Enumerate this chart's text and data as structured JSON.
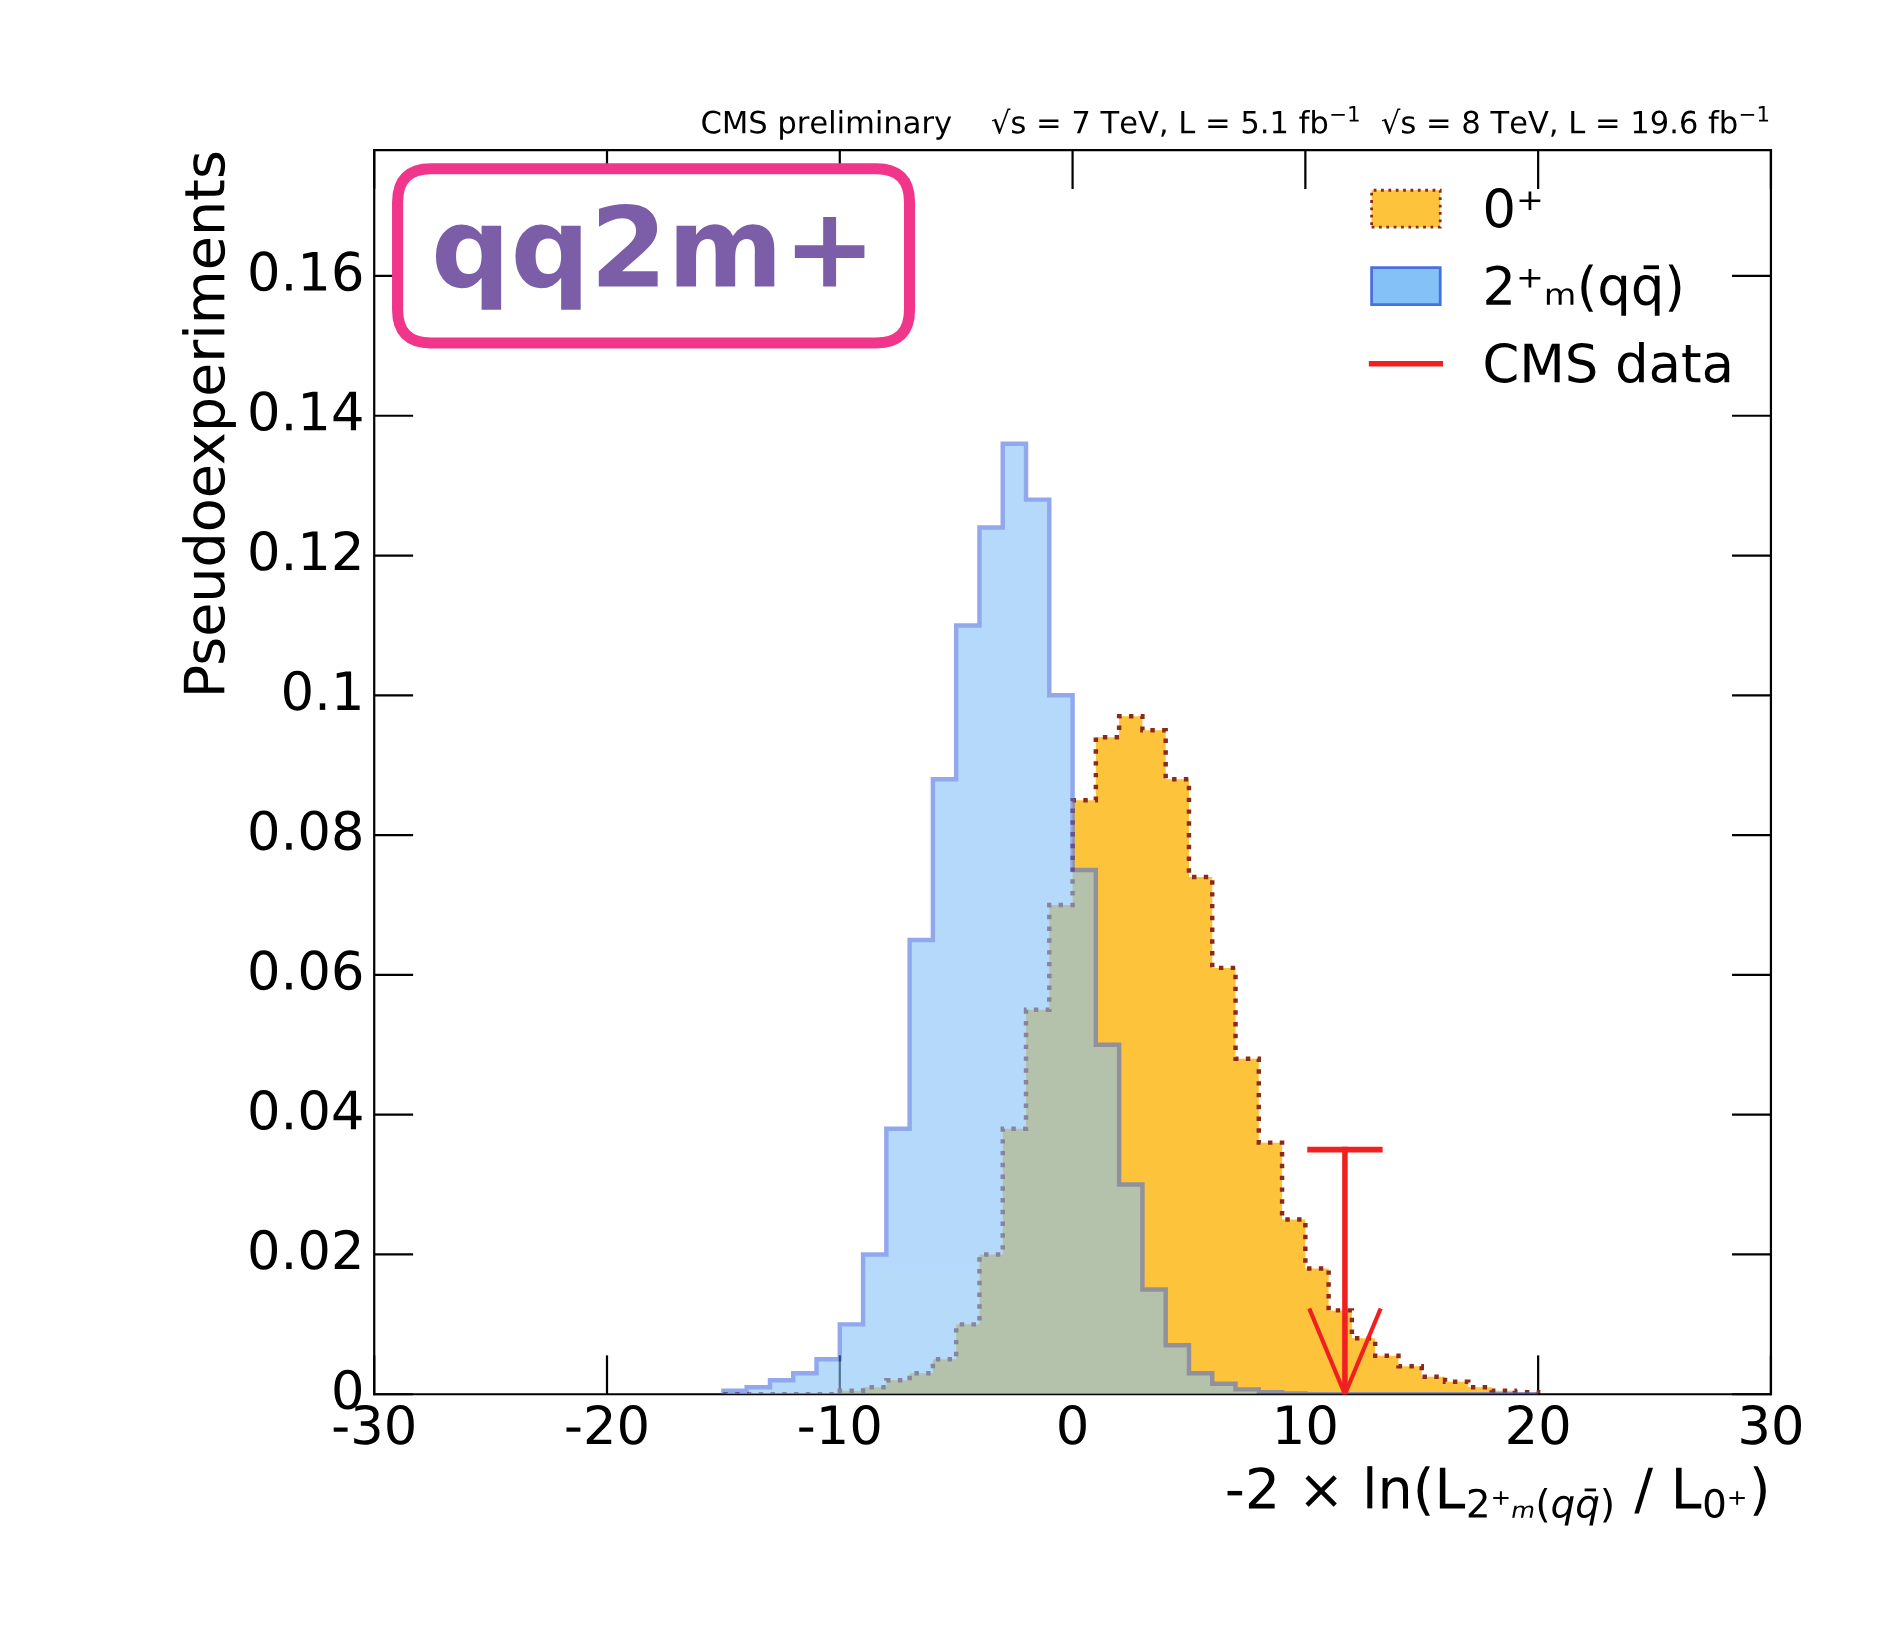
{
  "chart_data": {
    "type": "histogram",
    "title": "CMS preliminary    √s = 7 TeV, L = 5.1 fb$^{−1}$  √s = 8 TeV, L = 19.6 fb$^{−1}$",
    "xlabel": "-2 × ln(L$_{2⁺ₘ(qq̄)}$ / L$_{0⁺}$)",
    "ylabel": "Pseudoexperiments",
    "annotations": [
      "qq2m+"
    ],
    "bins": [
      -15,
      -14,
      -13,
      -12,
      -11,
      -10,
      -9,
      -8,
      -7,
      -6,
      -5,
      -4,
      -3,
      -2,
      -1,
      0,
      1,
      2,
      3,
      4,
      5,
      6,
      7,
      8,
      9,
      10,
      11,
      12,
      13,
      14,
      15,
      16,
      17,
      18,
      19,
      20
    ],
    "series": [
      {
        "name": "0⁺",
        "color": "#fdc33a",
        "line_style": "dotted",
        "values": [
          0,
          0,
          0,
          0,
          0,
          0.0005,
          0.001,
          0.002,
          0.003,
          0.005,
          0.01,
          0.02,
          0.038,
          0.055,
          0.07,
          0.085,
          0.094,
          0.097,
          0.095,
          0.088,
          0.074,
          0.061,
          0.048,
          0.036,
          0.025,
          0.018,
          0.012,
          0.008,
          0.0055,
          0.004,
          0.0025,
          0.0018,
          0.001,
          0.0005,
          0.0003
        ]
      },
      {
        "name": "2⁺ₘ(qq̄)",
        "color": "#84c1f7",
        "line_style": "solid",
        "values": [
          0.0005,
          0.001,
          0.002,
          0.003,
          0.005,
          0.01,
          0.02,
          0.038,
          0.065,
          0.088,
          0.11,
          0.124,
          0.136,
          0.128,
          0.1,
          0.075,
          0.05,
          0.03,
          0.015,
          0.007,
          0.003,
          0.0015,
          0.0007,
          0.0003,
          0.0001,
          0,
          0,
          0,
          0,
          0,
          0,
          0,
          0,
          0,
          0
        ]
      },
      {
        "name": "CMS data",
        "type": "line",
        "color": "#f02020",
        "x": [
          11.7,
          11.7
        ],
        "values": [
          0,
          0.035
        ]
      }
    ],
    "xlim": [
      -30,
      30
    ],
    "xticks": [
      -30,
      -20,
      -10,
      0,
      10,
      20,
      30
    ],
    "ylim": [
      0,
      0.178
    ],
    "yticks": [
      0,
      0.02,
      0.04,
      0.06,
      0.08,
      0.1,
      0.12,
      0.14,
      0.16
    ],
    "legend": "top right",
    "grid": false
  }
}
